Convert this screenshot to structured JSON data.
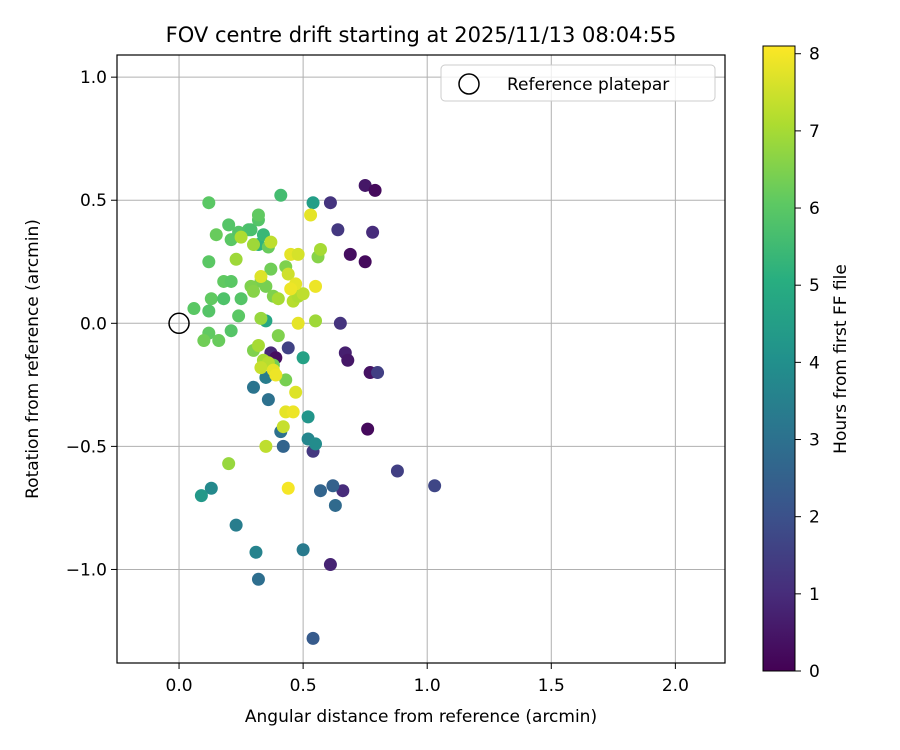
{
  "chart_data": {
    "type": "scatter",
    "title": "FOV centre drift starting at 2025/11/13 08:04:55",
    "xlabel": "Angular distance from reference (arcmin)",
    "ylabel": "Rotation from reference (arcmin)",
    "xlim": [
      -0.25,
      2.2
    ],
    "ylim": [
      -1.38,
      1.09
    ],
    "xticks": [
      0.0,
      0.5,
      1.0,
      1.5,
      2.0
    ],
    "xtick_labels": [
      "0.0",
      "0.5",
      "1.0",
      "1.5",
      "2.0"
    ],
    "yticks": [
      1.0,
      0.5,
      0.0,
      -0.5,
      -1.0
    ],
    "ytick_labels": [
      "1.0",
      "0.5",
      "0.0",
      "−0.5",
      "−1.0"
    ],
    "grid": true,
    "legend": {
      "position": "top-right",
      "entries": [
        "Reference platepar"
      ]
    },
    "reference_point": {
      "x": 0.0,
      "y": 0.0
    },
    "colorbar": {
      "label": "Hours from first FF file",
      "min": 0,
      "max": 8.1,
      "ticks": [
        0,
        1,
        2,
        3,
        4,
        5,
        6,
        7,
        8
      ],
      "tick_labels": [
        "0",
        "1",
        "2",
        "3",
        "4",
        "5",
        "6",
        "7",
        "8"
      ],
      "colormap": "viridis"
    },
    "points": [
      {
        "x": 0.75,
        "y": 0.56,
        "h": 0.5
      },
      {
        "x": 0.79,
        "y": 0.54,
        "h": 0.2
      },
      {
        "x": 0.61,
        "y": 0.49,
        "h": 1.2
      },
      {
        "x": 0.78,
        "y": 0.37,
        "h": 1.0
      },
      {
        "x": 0.64,
        "y": 0.38,
        "h": 1.3
      },
      {
        "x": 0.69,
        "y": 0.28,
        "h": 0.3
      },
      {
        "x": 0.75,
        "y": 0.25,
        "h": 0.2
      },
      {
        "x": 0.65,
        "y": 0.0,
        "h": 1.2
      },
      {
        "x": 0.67,
        "y": -0.12,
        "h": 0.7
      },
      {
        "x": 0.68,
        "y": -0.15,
        "h": 0.5
      },
      {
        "x": 0.77,
        "y": -0.2,
        "h": 0.4
      },
      {
        "x": 0.8,
        "y": -0.2,
        "h": 1.5
      },
      {
        "x": 0.76,
        "y": -0.43,
        "h": 0.2
      },
      {
        "x": 0.88,
        "y": -0.6,
        "h": 1.5
      },
      {
        "x": 1.03,
        "y": -0.66,
        "h": 1.7
      },
      {
        "x": 0.66,
        "y": -0.68,
        "h": 1.0
      },
      {
        "x": 0.61,
        "y": -0.98,
        "h": 0.8
      },
      {
        "x": 0.54,
        "y": -0.52,
        "h": 1.3
      },
      {
        "x": 0.44,
        "y": -0.1,
        "h": 1.6
      },
      {
        "x": 0.37,
        "y": -0.12,
        "h": 0.9
      },
      {
        "x": 0.39,
        "y": -0.14,
        "h": 0.3
      },
      {
        "x": 0.54,
        "y": -1.28,
        "h": 2.3
      },
      {
        "x": 0.57,
        "y": -0.68,
        "h": 2.6
      },
      {
        "x": 0.62,
        "y": -0.66,
        "h": 2.5
      },
      {
        "x": 0.63,
        "y": -0.74,
        "h": 2.8
      },
      {
        "x": 0.32,
        "y": -1.04,
        "h": 2.9
      },
      {
        "x": 0.31,
        "y": -0.93,
        "h": 3.6
      },
      {
        "x": 0.5,
        "y": -0.92,
        "h": 3.3
      },
      {
        "x": 0.23,
        "y": -0.82,
        "h": 3.4
      },
      {
        "x": 0.13,
        "y": -0.67,
        "h": 3.8
      },
      {
        "x": 0.09,
        "y": -0.7,
        "h": 4.3
      },
      {
        "x": 0.3,
        "y": -0.26,
        "h": 3.1
      },
      {
        "x": 0.36,
        "y": -0.31,
        "h": 3.0
      },
      {
        "x": 0.35,
        "y": -0.22,
        "h": 3.4
      },
      {
        "x": 0.41,
        "y": -0.44,
        "h": 3.0
      },
      {
        "x": 0.42,
        "y": -0.5,
        "h": 2.6
      },
      {
        "x": 0.52,
        "y": -0.47,
        "h": 3.7
      },
      {
        "x": 0.55,
        "y": -0.49,
        "h": 3.9
      },
      {
        "x": 0.52,
        "y": -0.38,
        "h": 4.2
      },
      {
        "x": 0.5,
        "y": -0.14,
        "h": 4.6
      },
      {
        "x": 0.54,
        "y": 0.49,
        "h": 4.5
      },
      {
        "x": 0.35,
        "y": 0.01,
        "h": 4.8
      },
      {
        "x": 0.32,
        "y": 0.32,
        "h": 5.2
      },
      {
        "x": 0.34,
        "y": 0.36,
        "h": 5.4
      },
      {
        "x": 0.41,
        "y": 0.52,
        "h": 5.6
      },
      {
        "x": 0.12,
        "y": 0.49,
        "h": 6.0
      },
      {
        "x": 0.2,
        "y": 0.4,
        "h": 5.9
      },
      {
        "x": 0.15,
        "y": 0.36,
        "h": 6.2
      },
      {
        "x": 0.21,
        "y": 0.34,
        "h": 6.0
      },
      {
        "x": 0.24,
        "y": 0.37,
        "h": 5.9
      },
      {
        "x": 0.28,
        "y": 0.38,
        "h": 5.8
      },
      {
        "x": 0.29,
        "y": 0.38,
        "h": 5.7
      },
      {
        "x": 0.32,
        "y": 0.42,
        "h": 5.9
      },
      {
        "x": 0.32,
        "y": 0.44,
        "h": 6.1
      },
      {
        "x": 0.36,
        "y": 0.31,
        "h": 6.2
      },
      {
        "x": 0.12,
        "y": 0.25,
        "h": 6.0
      },
      {
        "x": 0.18,
        "y": 0.17,
        "h": 6.1
      },
      {
        "x": 0.21,
        "y": 0.17,
        "h": 6.0
      },
      {
        "x": 0.13,
        "y": 0.1,
        "h": 6.1
      },
      {
        "x": 0.18,
        "y": 0.1,
        "h": 5.8
      },
      {
        "x": 0.25,
        "y": 0.1,
        "h": 5.9
      },
      {
        "x": 0.06,
        "y": 0.06,
        "h": 6.0
      },
      {
        "x": 0.12,
        "y": 0.05,
        "h": 5.9
      },
      {
        "x": 0.24,
        "y": 0.03,
        "h": 6.0
      },
      {
        "x": 0.12,
        "y": -0.04,
        "h": 6.1
      },
      {
        "x": 0.21,
        "y": -0.03,
        "h": 5.9
      },
      {
        "x": 0.1,
        "y": -0.07,
        "h": 6.3
      },
      {
        "x": 0.16,
        "y": -0.07,
        "h": 6.2
      },
      {
        "x": 0.37,
        "y": 0.22,
        "h": 6.3
      },
      {
        "x": 0.43,
        "y": 0.23,
        "h": 6.5
      },
      {
        "x": 0.33,
        "y": 0.17,
        "h": 6.4
      },
      {
        "x": 0.29,
        "y": 0.15,
        "h": 6.5
      },
      {
        "x": 0.3,
        "y": 0.13,
        "h": 6.6
      },
      {
        "x": 0.35,
        "y": 0.15,
        "h": 6.4
      },
      {
        "x": 0.38,
        "y": 0.11,
        "h": 6.5
      },
      {
        "x": 0.56,
        "y": 0.27,
        "h": 6.6
      },
      {
        "x": 0.4,
        "y": -0.05,
        "h": 6.5
      },
      {
        "x": 0.38,
        "y": -0.17,
        "h": 6.3
      },
      {
        "x": 0.43,
        "y": -0.23,
        "h": 6.4
      },
      {
        "x": 0.3,
        "y": -0.11,
        "h": 6.5
      },
      {
        "x": 0.2,
        "y": -0.57,
        "h": 6.8
      },
      {
        "x": 0.23,
        "y": 0.26,
        "h": 6.9
      },
      {
        "x": 0.3,
        "y": 0.32,
        "h": 6.9
      },
      {
        "x": 0.57,
        "y": 0.3,
        "h": 7.0
      },
      {
        "x": 0.25,
        "y": 0.35,
        "h": 7.1
      },
      {
        "x": 0.37,
        "y": 0.33,
        "h": 7.3
      },
      {
        "x": 0.4,
        "y": 0.1,
        "h": 7.0
      },
      {
        "x": 0.46,
        "y": 0.09,
        "h": 7.2
      },
      {
        "x": 0.48,
        "y": 0.11,
        "h": 7.1
      },
      {
        "x": 0.5,
        "y": 0.12,
        "h": 7.3
      },
      {
        "x": 0.33,
        "y": 0.02,
        "h": 6.8
      },
      {
        "x": 0.55,
        "y": 0.01,
        "h": 6.9
      },
      {
        "x": 0.32,
        "y": -0.09,
        "h": 7.0
      },
      {
        "x": 0.34,
        "y": -0.15,
        "h": 7.0
      },
      {
        "x": 0.36,
        "y": -0.16,
        "h": 7.2
      },
      {
        "x": 0.33,
        "y": -0.18,
        "h": 7.4
      },
      {
        "x": 0.35,
        "y": -0.5,
        "h": 7.3
      },
      {
        "x": 0.42,
        "y": -0.42,
        "h": 7.4
      },
      {
        "x": 0.53,
        "y": 0.44,
        "h": 7.8
      },
      {
        "x": 0.45,
        "y": 0.28,
        "h": 7.8
      },
      {
        "x": 0.48,
        "y": 0.28,
        "h": 7.6
      },
      {
        "x": 0.44,
        "y": 0.2,
        "h": 7.5
      },
      {
        "x": 0.47,
        "y": 0.16,
        "h": 7.8
      },
      {
        "x": 0.45,
        "y": 0.14,
        "h": 7.9
      },
      {
        "x": 0.55,
        "y": 0.15,
        "h": 7.9
      },
      {
        "x": 0.33,
        "y": 0.19,
        "h": 7.7
      },
      {
        "x": 0.48,
        "y": 0.0,
        "h": 7.8
      },
      {
        "x": 0.38,
        "y": -0.19,
        "h": 7.8
      },
      {
        "x": 0.39,
        "y": -0.21,
        "h": 7.9
      },
      {
        "x": 0.47,
        "y": -0.28,
        "h": 7.7
      },
      {
        "x": 0.43,
        "y": -0.36,
        "h": 7.8
      },
      {
        "x": 0.46,
        "y": -0.36,
        "h": 7.9
      },
      {
        "x": 0.44,
        "y": -0.67,
        "h": 8.0
      }
    ]
  }
}
